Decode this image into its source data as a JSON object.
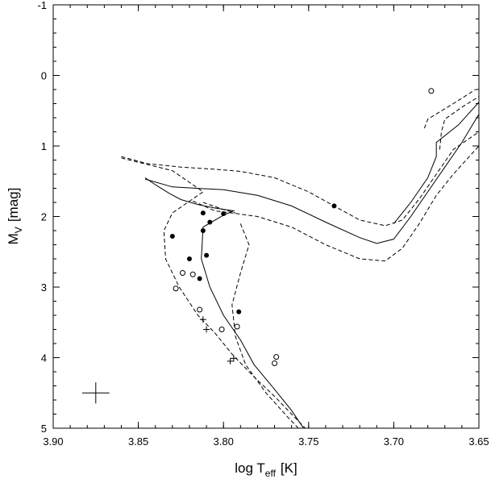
{
  "chart_data": {
    "type": "scatter",
    "title": "",
    "xlabel": {
      "main": "log T",
      "sub": "eff",
      "unit": "[K]"
    },
    "ylabel": {
      "main": "M",
      "sub": "V",
      "unit": "[mag]"
    },
    "xlim": [
      3.9,
      3.65
    ],
    "ylim": [
      -1,
      5
    ],
    "y_inverted": true,
    "x_inverted": true,
    "grid": false,
    "legend": "none",
    "xticks": [
      "3.90",
      "3.85",
      "3.80",
      "3.75",
      "3.70",
      "3.65"
    ],
    "yticks": [
      "-1",
      "0",
      "1",
      "2",
      "3",
      "4",
      "5"
    ],
    "series": [
      {
        "marker": "filled-circle",
        "points": [
          [
            3.83,
            2.28
          ],
          [
            3.82,
            2.6
          ],
          [
            3.812,
            1.95
          ],
          [
            3.808,
            2.08
          ],
          [
            3.8,
            1.96
          ],
          [
            3.812,
            2.2
          ],
          [
            3.81,
            2.55
          ],
          [
            3.814,
            2.88
          ],
          [
            3.791,
            3.35
          ],
          [
            3.735,
            1.85
          ]
        ]
      },
      {
        "marker": "open-circle",
        "points": [
          [
            3.678,
            0.22
          ],
          [
            3.828,
            3.02
          ],
          [
            3.824,
            2.8
          ],
          [
            3.818,
            2.82
          ],
          [
            3.814,
            3.32
          ],
          [
            3.801,
            3.6
          ],
          [
            3.792,
            3.56
          ],
          [
            3.769,
            3.99
          ],
          [
            3.77,
            4.08
          ]
        ]
      },
      {
        "marker": "plus",
        "points": [
          [
            3.812,
            3.46
          ],
          [
            3.81,
            3.6
          ],
          [
            3.796,
            4.05
          ],
          [
            3.794,
            4.01
          ]
        ]
      }
    ],
    "error_bar": {
      "x": 3.875,
      "y": 4.5,
      "dx": 0.008,
      "dy": 0.15
    },
    "lines": [
      {
        "style": "solid",
        "points": [
          [
            3.846,
            1.45
          ],
          [
            3.84,
            1.55
          ],
          [
            3.832,
            1.67
          ],
          [
            3.825,
            1.76
          ],
          [
            3.815,
            1.83
          ],
          [
            3.805,
            1.88
          ],
          [
            3.794,
            1.92
          ],
          [
            3.8,
            1.98
          ],
          [
            3.812,
            2.15
          ],
          [
            3.813,
            2.6
          ],
          [
            3.808,
            3.0
          ],
          [
            3.8,
            3.4
          ],
          [
            3.79,
            3.75
          ],
          [
            3.782,
            4.1
          ],
          [
            3.77,
            4.45
          ],
          [
            3.76,
            4.75
          ],
          [
            3.753,
            5.0
          ]
        ]
      },
      {
        "style": "solid",
        "points": [
          [
            3.846,
            1.47
          ],
          [
            3.83,
            1.58
          ],
          [
            3.8,
            1.62
          ],
          [
            3.78,
            1.7
          ],
          [
            3.76,
            1.85
          ],
          [
            3.74,
            2.08
          ],
          [
            3.72,
            2.3
          ],
          [
            3.71,
            2.38
          ],
          [
            3.7,
            2.32
          ],
          [
            3.69,
            2.0
          ],
          [
            3.68,
            1.65
          ],
          [
            3.67,
            1.3
          ],
          [
            3.66,
            0.95
          ],
          [
            3.65,
            0.55
          ]
        ]
      },
      {
        "style": "solid",
        "points": [
          [
            3.7,
            2.1
          ],
          [
            3.69,
            1.8
          ],
          [
            3.68,
            1.45
          ],
          [
            3.675,
            1.15
          ],
          [
            3.675,
            0.95
          ],
          [
            3.662,
            0.7
          ],
          [
            3.65,
            0.38
          ]
        ]
      },
      {
        "style": "dashed",
        "points": [
          [
            3.86,
            1.15
          ],
          [
            3.845,
            1.25
          ],
          [
            3.825,
            1.3
          ],
          [
            3.805,
            1.33
          ],
          [
            3.79,
            1.36
          ],
          [
            3.77,
            1.45
          ],
          [
            3.75,
            1.65
          ],
          [
            3.735,
            1.85
          ],
          [
            3.72,
            2.05
          ],
          [
            3.705,
            2.13
          ],
          [
            3.695,
            2.05
          ],
          [
            3.685,
            1.75
          ],
          [
            3.675,
            1.4
          ],
          [
            3.665,
            1.05
          ],
          [
            3.65,
            0.8
          ]
        ]
      },
      {
        "style": "dashed",
        "points": [
          [
            3.86,
            1.17
          ],
          [
            3.845,
            1.26
          ],
          [
            3.83,
            1.35
          ],
          [
            3.818,
            1.55
          ],
          [
            3.812,
            1.65
          ],
          [
            3.83,
            1.95
          ],
          [
            3.835,
            2.2
          ],
          [
            3.834,
            2.6
          ],
          [
            3.826,
            3.0
          ],
          [
            3.815,
            3.4
          ],
          [
            3.805,
            3.65
          ],
          [
            3.795,
            3.95
          ],
          [
            3.783,
            4.25
          ],
          [
            3.77,
            4.55
          ],
          [
            3.758,
            4.85
          ],
          [
            3.752,
            5.0
          ]
        ]
      },
      {
        "style": "dashed",
        "points": [
          [
            3.818,
            1.78
          ],
          [
            3.805,
            1.92
          ],
          [
            3.795,
            1.95
          ],
          [
            3.78,
            2.0
          ],
          [
            3.76,
            2.15
          ],
          [
            3.74,
            2.4
          ],
          [
            3.72,
            2.6
          ],
          [
            3.705,
            2.63
          ],
          [
            3.695,
            2.45
          ],
          [
            3.685,
            2.1
          ],
          [
            3.675,
            1.7
          ],
          [
            3.665,
            1.4
          ],
          [
            3.65,
            1.0
          ]
        ]
      },
      {
        "style": "dashed",
        "points": [
          [
            3.79,
            2.1
          ],
          [
            3.785,
            2.4
          ],
          [
            3.79,
            2.8
          ],
          [
            3.795,
            3.25
          ],
          [
            3.793,
            3.7
          ],
          [
            3.787,
            4.1
          ],
          [
            3.775,
            4.5
          ],
          [
            3.762,
            4.85
          ],
          [
            3.756,
            5.0
          ]
        ]
      },
      {
        "style": "dashed",
        "points": [
          [
            3.812,
            1.8
          ],
          [
            3.8,
            1.9
          ],
          [
            3.793,
            1.95
          ]
        ]
      },
      {
        "style": "dashed",
        "points": [
          [
            3.673,
            1.05
          ],
          [
            3.672,
            0.8
          ],
          [
            3.67,
            0.62
          ],
          [
            3.66,
            0.45
          ],
          [
            3.65,
            0.3
          ]
        ]
      },
      {
        "style": "dashed",
        "points": [
          [
            3.682,
            0.75
          ],
          [
            3.68,
            0.62
          ],
          [
            3.665,
            0.4
          ],
          [
            3.652,
            0.2
          ]
        ]
      }
    ]
  }
}
